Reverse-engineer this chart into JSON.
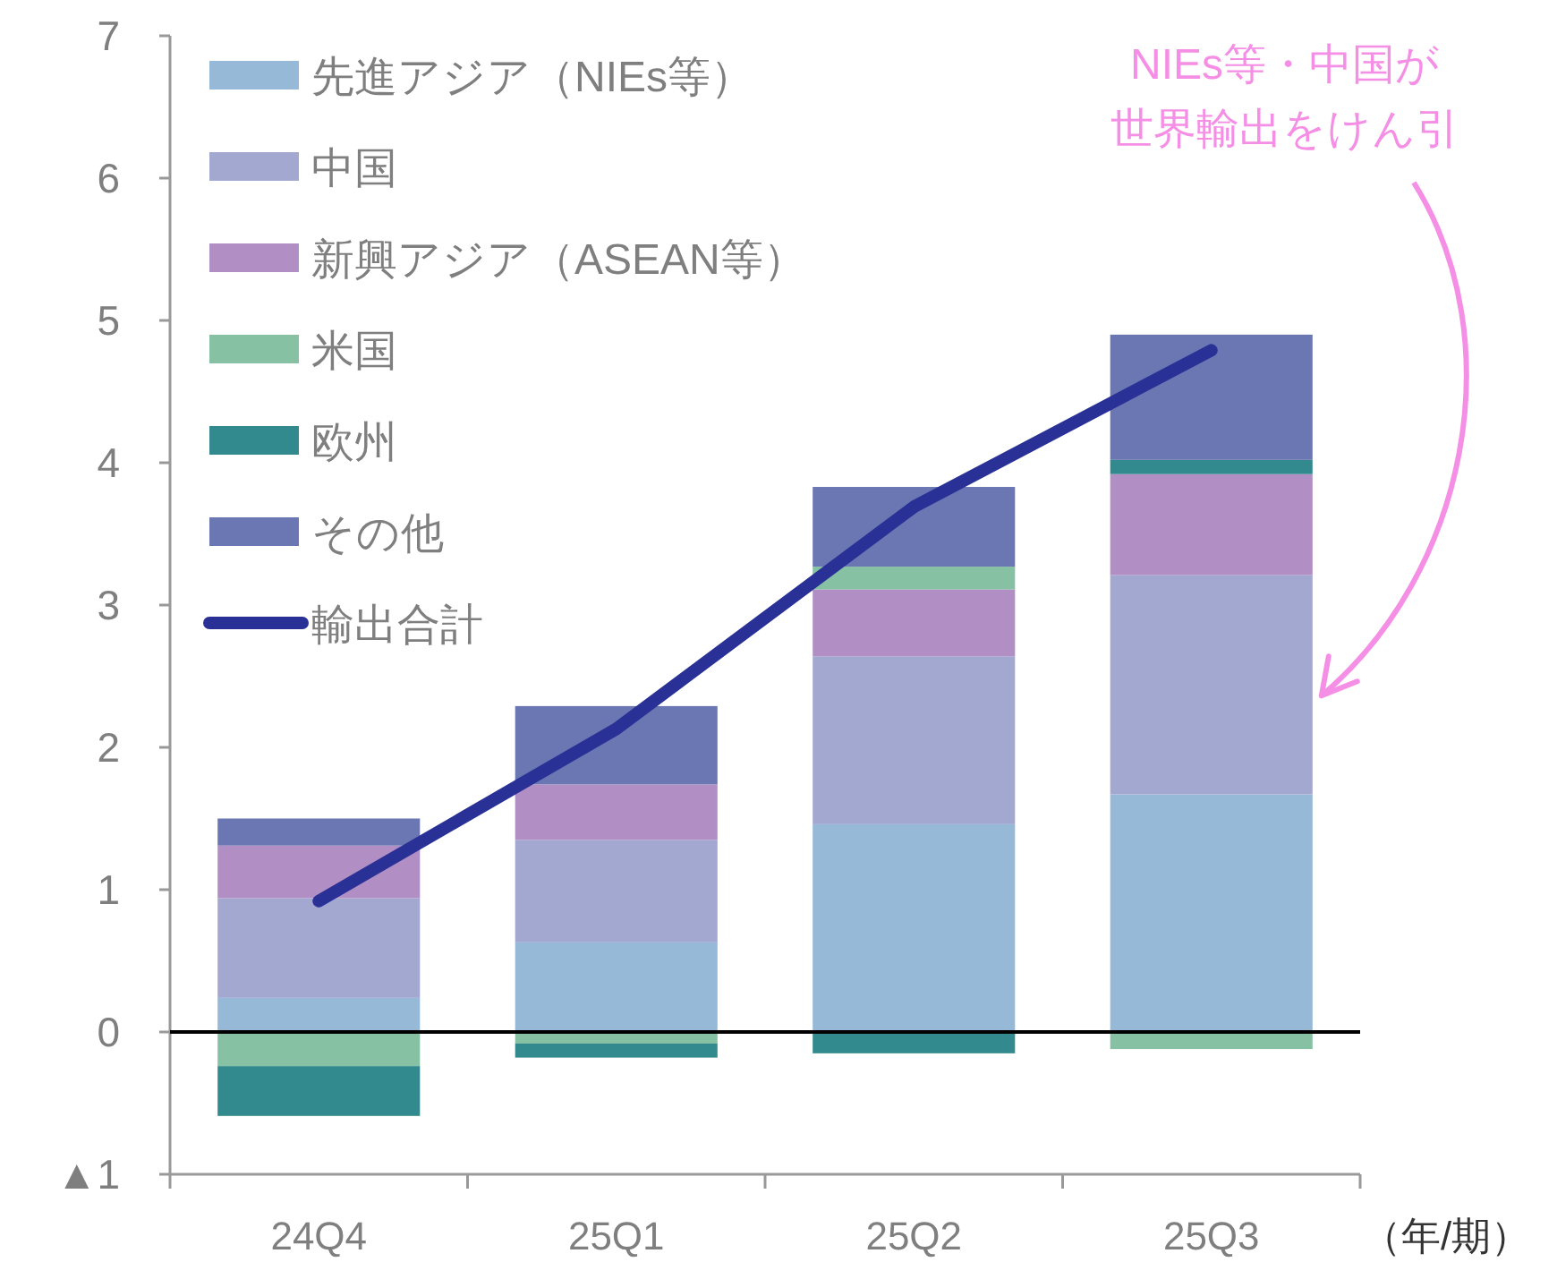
{
  "chart_data": {
    "type": "bar",
    "stacked": true,
    "xlabel": "（年/期）",
    "categories": [
      "24Q4",
      "25Q1",
      "25Q2",
      "25Q3"
    ],
    "series": [
      {
        "name": "先進アジア（NIEs等）",
        "color": "#95b9d7",
        "values": [
          0.24,
          0.63,
          1.46,
          1.67
        ]
      },
      {
        "name": "中国",
        "color": "#a3a8d0",
        "values": [
          0.7,
          0.72,
          1.18,
          1.54
        ]
      },
      {
        "name": "新興アジア（ASEAN等）",
        "color": "#b18fc4",
        "values": [
          0.37,
          0.39,
          0.47,
          0.71
        ]
      },
      {
        "name": "米国",
        "color": "#86c1a4",
        "values": [
          -0.24,
          -0.08,
          0.16,
          -0.12
        ]
      },
      {
        "name": "欧州",
        "color": "#338a8e",
        "values": [
          -0.35,
          -0.1,
          -0.15,
          0.1
        ]
      },
      {
        "name": "その他",
        "color": "#6a77b3",
        "values": [
          0.19,
          0.55,
          0.56,
          0.88
        ]
      },
      {
        "name": "輸出合計",
        "type": "line",
        "color": "#2a3196",
        "values": [
          0.92,
          2.13,
          3.69,
          4.79
        ]
      }
    ],
    "ylim": [
      -1,
      7
    ],
    "yticks": [
      {
        "value": -1,
        "label": "▲1"
      },
      0,
      1,
      2,
      3,
      4,
      5,
      6,
      7
    ],
    "grid": false,
    "legend": "top left",
    "ref_lines": [
      {
        "axis": "y",
        "value": 0,
        "color": "#000000"
      }
    ],
    "annotations": [
      "NIEs等・中国が",
      "世界輸出をけん引"
    ]
  }
}
